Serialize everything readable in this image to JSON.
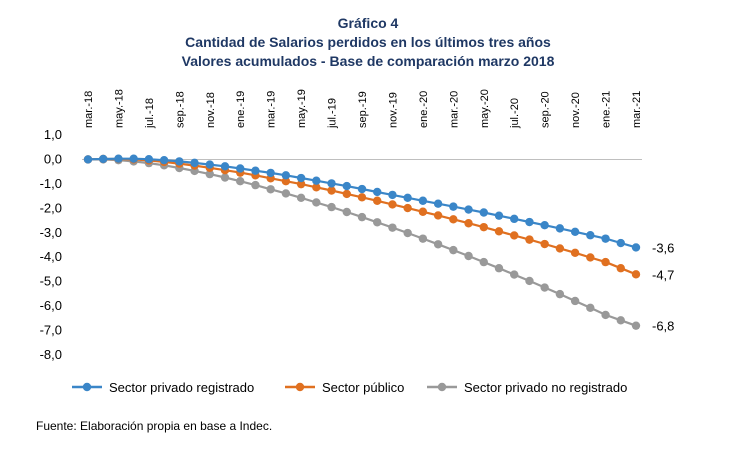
{
  "header": {
    "title": "Gráfico 4",
    "subtitle": "Cantidad de Salarios perdidos en los últimos tres años",
    "subtitle2": "Valores acumulados - Base de comparación marzo 2018"
  },
  "source": "Fuente: Elaboración propia en base a Indec.",
  "chart_data": {
    "type": "line",
    "title": "Gráfico 4",
    "subtitle": "Cantidad de Salarios perdidos en los últimos tres años — Valores acumulados - Base de comparación marzo 2018",
    "ylim": [
      -8,
      1
    ],
    "y_ticks": [
      "1,0",
      "0,0",
      "-1,0",
      "-2,0",
      "-3,0",
      "-4,0",
      "-5,0",
      "-6,0",
      "-7,0",
      "-8,0"
    ],
    "x_tick_labels": [
      "mar.-18",
      "may.-18",
      "jul.-18",
      "sep.-18",
      "nov.-18",
      "ene.-19",
      "mar.-19",
      "may.-19",
      "jul.-19",
      "sep.-19",
      "nov.-19",
      "ene.-20",
      "mar.-20",
      "may.-20",
      "jul.-20",
      "sep.-20",
      "nov.-20",
      "ene.-21",
      "mar.-21"
    ],
    "x_tick_every": 2,
    "x": [
      "mar.-18",
      "abr.-18",
      "may.-18",
      "jun.-18",
      "jul.-18",
      "ago.-18",
      "sep.-18",
      "oct.-18",
      "nov.-18",
      "dic.-18",
      "ene.-19",
      "feb.-19",
      "mar.-19",
      "abr.-19",
      "may.-19",
      "jun.-19",
      "jul.-19",
      "ago.-19",
      "sep.-19",
      "oct.-19",
      "nov.-19",
      "dic.-19",
      "ene.-20",
      "feb.-20",
      "mar.-20",
      "abr.-20",
      "may.-20",
      "jun.-20",
      "jul.-20",
      "ago.-20",
      "sep.-20",
      "oct.-20",
      "nov.-20",
      "dic.-20",
      "ene.-21",
      "feb.-21",
      "mar.-21"
    ],
    "legend_position": "bottom",
    "grid": false,
    "series": [
      {
        "name": "Sector privado registrado",
        "color": "#3a86c8",
        "end_label": "-3,6",
        "values": [
          0.0,
          0.02,
          0.03,
          0.03,
          0.01,
          -0.03,
          -0.08,
          -0.14,
          -0.21,
          -0.28,
          -0.37,
          -0.46,
          -0.55,
          -0.65,
          -0.76,
          -0.87,
          -0.98,
          -1.09,
          -1.21,
          -1.33,
          -1.45,
          -1.57,
          -1.69,
          -1.81,
          -1.93,
          -2.05,
          -2.17,
          -2.3,
          -2.43,
          -2.56,
          -2.69,
          -2.82,
          -2.96,
          -3.1,
          -3.24,
          -3.42,
          -3.6
        ]
      },
      {
        "name": "Sector público",
        "color": "#e07020",
        "end_label": "-4,7",
        "values": [
          0.0,
          0.02,
          0.02,
          0.0,
          -0.04,
          -0.1,
          -0.17,
          -0.25,
          -0.34,
          -0.44,
          -0.54,
          -0.65,
          -0.77,
          -0.89,
          -1.01,
          -1.14,
          -1.27,
          -1.41,
          -1.55,
          -1.69,
          -1.84,
          -1.99,
          -2.14,
          -2.29,
          -2.45,
          -2.61,
          -2.77,
          -2.94,
          -3.11,
          -3.28,
          -3.46,
          -3.64,
          -3.82,
          -4.01,
          -4.2,
          -4.45,
          -4.7
        ]
      },
      {
        "name": "Sector privado no registrado",
        "color": "#999999",
        "end_label": "-6,8",
        "values": [
          0.0,
          0.0,
          -0.03,
          -0.08,
          -0.15,
          -0.24,
          -0.35,
          -0.47,
          -0.6,
          -0.74,
          -0.89,
          -1.05,
          -1.22,
          -1.39,
          -1.57,
          -1.76,
          -1.95,
          -2.15,
          -2.36,
          -2.57,
          -2.79,
          -3.01,
          -3.24,
          -3.47,
          -3.71,
          -3.95,
          -4.2,
          -4.45,
          -4.71,
          -4.97,
          -5.24,
          -5.51,
          -5.79,
          -6.07,
          -6.36,
          -6.58,
          -6.8
        ]
      }
    ]
  }
}
